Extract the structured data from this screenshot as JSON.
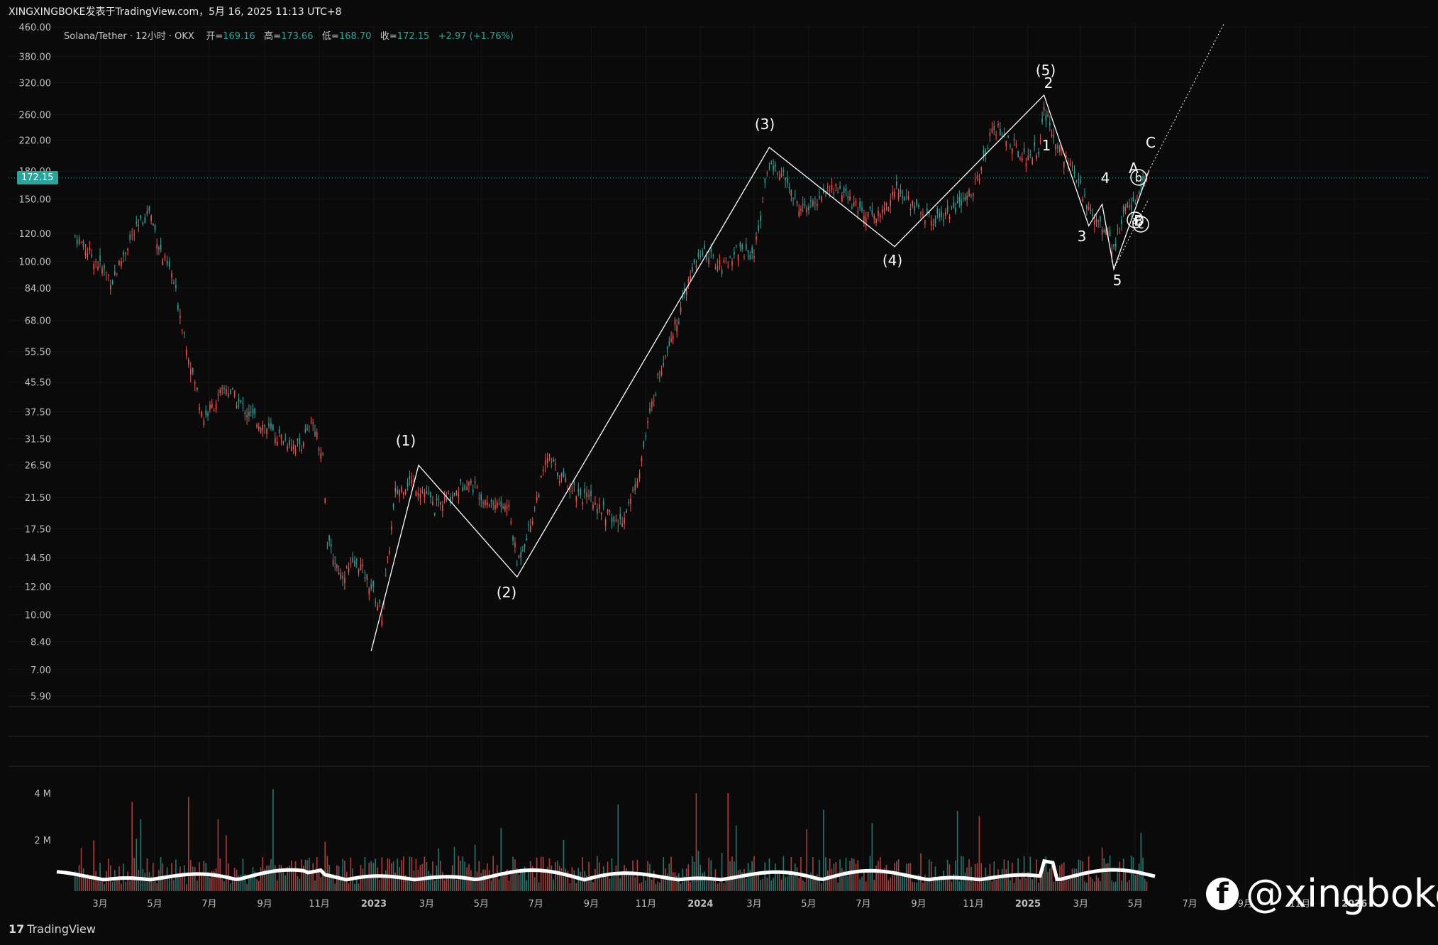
{
  "header": {
    "caption": "XINGXINGBOKE发表于TradingView.com，5月 16, 2025 11:13 UTC+8"
  },
  "legend": {
    "symbol": "Solana/Tether · 12小时 · OKX",
    "open_label": "开",
    "open": "169.16",
    "high_label": "高",
    "high": "173.66",
    "low_label": "低",
    "low": "168.70",
    "close_label": "收",
    "close": "172.15",
    "change": "+2.97 (+1.76%)"
  },
  "last_price": "172.15",
  "colors": {
    "background": "#0a0a0a",
    "up": "#26a69a",
    "down": "#ef5350",
    "wave_lines": "#ffffff",
    "grid": "#1c1c1c"
  },
  "brand": "TradingView",
  "watermark": "@xingboke",
  "chart_data": [
    {
      "type": "line",
      "scale": "log",
      "y_ticks": [
        "460.00",
        "380.00",
        "320.00",
        "260.00",
        "220.00",
        "180.00",
        "150.00",
        "120.00",
        "100.00",
        "84.00",
        "68.00",
        "55.50",
        "45.50",
        "37.50",
        "31.50",
        "26.50",
        "21.50",
        "17.50",
        "14.50",
        "12.00",
        "10.00",
        "8.40",
        "7.00",
        "5.90"
      ],
      "x_ticks": [
        "3月",
        "5月",
        "7月",
        "9月",
        "11月",
        "2023",
        "3月",
        "5月",
        "7月",
        "9月",
        "11月",
        "2024",
        "3月",
        "5月",
        "7月",
        "9月",
        "11月",
        "2025",
        "3月",
        "5月",
        "7月",
        "9月",
        "11月",
        "2026"
      ],
      "ylim": [
        5.5,
        460
      ],
      "series": [
        {
          "x": [
            "2022-02-01",
            "2022-03-15",
            "2022-04-01",
            "2022-04-25",
            "2022-05-10",
            "2022-05-20",
            "2022-06-15",
            "2022-06-25",
            "2022-07-20",
            "2022-08-10",
            "2022-09-01",
            "2022-09-15",
            "2022-10-10",
            "2022-10-25",
            "2022-11-05",
            "2022-11-10",
            "2022-11-25",
            "2022-12-15",
            "2022-12-29",
            "2023-01-10",
            "2023-01-25",
            "2023-02-10",
            "2023-03-01",
            "2023-03-10",
            "2023-04-01",
            "2023-04-15",
            "2023-05-10",
            "2023-06-01",
            "2023-06-10",
            "2023-06-25",
            "2023-07-14",
            "2023-08-01",
            "2023-08-20",
            "2023-09-10",
            "2023-10-01",
            "2023-10-15",
            "2023-10-25",
            "2023-11-10",
            "2023-11-25",
            "2023-12-10",
            "2023-12-25",
            "2024-01-08",
            "2024-01-25",
            "2024-02-10",
            "2024-03-01",
            "2024-03-18",
            "2024-04-05",
            "2024-04-18",
            "2024-05-01",
            "2024-05-20",
            "2024-06-05",
            "2024-06-25",
            "2024-07-20",
            "2024-08-05",
            "2024-08-25",
            "2024-09-15",
            "2024-10-10",
            "2024-10-25",
            "2024-11-10",
            "2024-11-22",
            "2024-12-10",
            "2024-12-30",
            "2025-01-13",
            "2025-01-19",
            "2025-02-01",
            "2025-02-15",
            "2025-03-01",
            "2025-03-10",
            "2025-03-25",
            "2025-04-07",
            "2025-04-20",
            "2025-05-01",
            "2025-05-16"
          ],
          "close": [
            118,
            88,
            112,
            140,
            102,
            92,
            45,
            36,
            44,
            38,
            34,
            32,
            30,
            35,
            28,
            16,
            13,
            14,
            12,
            10,
            22,
            24,
            22,
            20,
            22,
            24,
            21,
            20,
            14,
            18,
            28,
            24,
            22,
            20,
            18,
            21,
            26,
            42,
            58,
            72,
            100,
            105,
            95,
            108,
            105,
            190,
            170,
            145,
            140,
            160,
            160,
            140,
            135,
            160,
            145,
            130,
            140,
            150,
            180,
            245,
            220,
            195,
            210,
            265,
            220,
            190,
            160,
            140,
            128,
            108,
            140,
            150,
            172.15
          ]
        },
        {
          "name": "volume_ma",
          "unit": "M",
          "y_ticks": [
            "4 M",
            "2 M"
          ],
          "note_ticks_only": true
        }
      ],
      "wave_labels": [
        "(1)",
        "(2)",
        "(3)",
        "(4)",
        "(5)",
        "1",
        "2",
        "3",
        "4",
        "5",
        "A",
        "B",
        "C",
        "a",
        "b",
        "c"
      ],
      "wave_points": [
        {
          "label": "start",
          "x": "2022-12-29",
          "y": 7.9
        },
        {
          "label": "(1)",
          "x": "2023-02-20",
          "y": 26.5
        },
        {
          "label": "(2)",
          "x": "2023-06-10",
          "y": 12.8
        },
        {
          "label": "(3)",
          "x": "2024-03-18",
          "y": 210
        },
        {
          "label": "(4)",
          "x": "2024-08-05",
          "y": 110
        },
        {
          "label": "(5)",
          "x": "2025-01-19",
          "y": 295
        },
        {
          "label": "3",
          "x": "2025-03-10",
          "y": 126
        },
        {
          "label": "4",
          "x": "2025-03-25",
          "y": 145
        },
        {
          "label": "5",
          "x": "2025-04-07",
          "y": 95
        },
        {
          "label": "C",
          "x": "2025-05-16",
          "y": 180
        }
      ]
    }
  ]
}
